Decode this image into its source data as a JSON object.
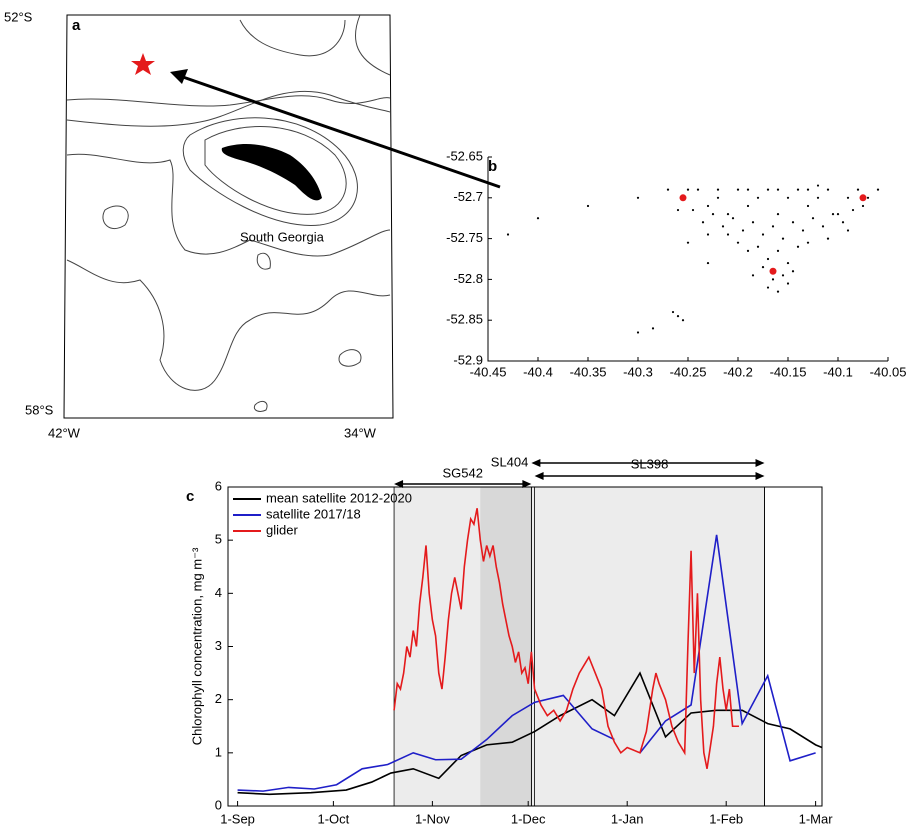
{
  "map": {
    "label": "a",
    "lat_top": "52°S",
    "lat_bottom": "58°S",
    "lon_left": "42°W",
    "lon_right": "34°W",
    "place": "South Georgia"
  },
  "chart_data": [
    {
      "type": "scatter",
      "panel": "b",
      "xlim": [
        -40.45,
        -40.05
      ],
      "ylim": [
        -52.9,
        -52.65
      ],
      "xticks": [
        -40.45,
        -40.4,
        -40.35,
        -40.3,
        -40.25,
        -40.2,
        -40.15,
        -40.1,
        -40.05
      ],
      "yticks": [
        -52.65,
        -52.7,
        -52.75,
        -52.8,
        -52.85,
        -52.9
      ],
      "series": [
        {
          "color": "#000000",
          "x": [
            -40.24,
            -40.23,
            -40.22,
            -40.21,
            -40.2,
            -40.19,
            -40.18,
            -40.17,
            -40.16,
            -40.15,
            -40.14,
            -40.13,
            -40.12,
            -40.11,
            -40.1,
            -40.09,
            -40.08,
            -40.075,
            -40.07,
            -40.245,
            -40.235,
            -40.225,
            -40.215,
            -40.205,
            -40.195,
            -40.185,
            -40.175,
            -40.165,
            -40.155,
            -40.145,
            -40.135,
            -40.125,
            -40.115,
            -40.105,
            -40.095,
            -40.085,
            -40.2,
            -40.19,
            -40.18,
            -40.17,
            -40.16,
            -40.15,
            -40.14,
            -40.13,
            -40.175,
            -40.165,
            -40.155,
            -40.17,
            -40.16,
            -40.15,
            -40.185,
            -40.145,
            -40.26,
            -40.27,
            -40.25,
            -40.12,
            -40.06,
            -40.09,
            -40.21,
            -40.23,
            -40.11,
            -40.22,
            -40.13,
            -40.16,
            -40.19,
            -40.43,
            -40.4,
            -40.35,
            -40.3,
            -40.3,
            -40.285,
            -40.265,
            -40.26,
            -40.255,
            -40.25,
            -40.23
          ],
          "values": [
            -52.69,
            -52.71,
            -52.7,
            -52.72,
            -52.69,
            -52.71,
            -52.7,
            -52.69,
            -52.72,
            -52.7,
            -52.69,
            -52.71,
            -52.7,
            -52.69,
            -52.72,
            -52.7,
            -52.69,
            -52.71,
            -52.7,
            -52.715,
            -52.73,
            -52.72,
            -52.735,
            -52.725,
            -52.74,
            -52.73,
            -52.745,
            -52.735,
            -52.75,
            -52.73,
            -52.74,
            -52.725,
            -52.735,
            -52.72,
            -52.73,
            -52.715,
            -52.755,
            -52.765,
            -52.76,
            -52.775,
            -52.765,
            -52.78,
            -52.76,
            -52.755,
            -52.785,
            -52.8,
            -52.795,
            -52.81,
            -52.815,
            -52.805,
            -52.795,
            -52.79,
            -52.715,
            -52.69,
            -52.69,
            -52.685,
            -52.69,
            -52.74,
            -52.745,
            -52.745,
            -52.75,
            -52.69,
            -52.69,
            -52.69,
            -52.69,
            -52.745,
            -52.725,
            -52.71,
            -52.7,
            -52.865,
            -52.86,
            -52.84,
            -52.845,
            -52.85,
            -52.755,
            -52.78
          ]
        },
        {
          "color": "#e41a1c",
          "x": [
            -40.255,
            -40.075,
            -40.165
          ],
          "values": [
            -52.7,
            -52.7,
            -52.79
          ]
        }
      ]
    },
    {
      "type": "line",
      "panel": "c",
      "ylabel": "Chlorophyll concentration, mg m⁻³",
      "xlim": [
        -3,
        183
      ],
      "ylim": [
        0,
        6
      ],
      "xticks": [
        {
          "value": 0,
          "label": "1-Sep"
        },
        {
          "value": 30,
          "label": "1-Oct"
        },
        {
          "value": 61,
          "label": "1-Nov"
        },
        {
          "value": 91,
          "label": "1-Dec"
        },
        {
          "value": 122,
          "label": "1-Jan"
        },
        {
          "value": 153,
          "label": "1-Feb"
        },
        {
          "value": 181,
          "label": "1-Mar"
        }
      ],
      "yticks": [
        0,
        1,
        2,
        3,
        4,
        5,
        6
      ],
      "legend": "upper left",
      "shaded": [
        {
          "start": 49,
          "end": 165,
          "color": "#ececec"
        },
        {
          "start": 76,
          "end": 92,
          "color": "#d8d8d8"
        }
      ],
      "deployments": [
        {
          "label": "SL404",
          "start": 92,
          "end": 165
        },
        {
          "label": "SL398",
          "start": 93,
          "end": 165
        },
        {
          "label": "SG542",
          "start": 49,
          "end": 92
        }
      ],
      "series": [
        {
          "name": "mean satellite 2012-2020",
          "color": "#000000",
          "x": [
            0,
            10,
            23,
            34,
            42,
            48,
            55,
            63,
            70,
            78,
            86,
            93,
            101,
            111,
            118,
            126,
            134,
            142,
            150,
            158,
            166,
            173,
            181,
            183
          ],
          "values": [
            0.25,
            0.22,
            0.25,
            0.3,
            0.45,
            0.62,
            0.7,
            0.52,
            0.95,
            1.15,
            1.2,
            1.4,
            1.7,
            2.0,
            1.7,
            2.5,
            1.3,
            1.75,
            1.8,
            1.8,
            1.55,
            1.45,
            1.15,
            1.1
          ]
        },
        {
          "name": "satellite 2017/18",
          "color": "#1f1fc8",
          "x": [
            0,
            8,
            16,
            24,
            31,
            39,
            47,
            55,
            62,
            70,
            78,
            86,
            93,
            102,
            111,
            118,
            122,
            126,
            134,
            142,
            150,
            158,
            166,
            173,
            181
          ],
          "values": [
            0.3,
            0.28,
            0.35,
            0.32,
            0.4,
            0.7,
            0.78,
            1.0,
            0.87,
            0.88,
            1.25,
            1.7,
            1.95,
            2.08,
            1.45,
            1.25,
            null,
            1.0,
            1.6,
            1.9,
            5.1,
            1.55,
            2.45,
            0.85,
            1.0
          ]
        },
        {
          "name": "glider",
          "color": "#e41a1c",
          "x": [
            49,
            50,
            51,
            52,
            53,
            54,
            55,
            56,
            57,
            58,
            59,
            60,
            61,
            62,
            63,
            64,
            65,
            66,
            67,
            68,
            69,
            70,
            71,
            72,
            73,
            74,
            75,
            76,
            77,
            78,
            79,
            80,
            81,
            82,
            83,
            84,
            85,
            86,
            87,
            88,
            89,
            90,
            91,
            92,
            93,
            95,
            97,
            99,
            101,
            103,
            105,
            107,
            109,
            110,
            112,
            114,
            116,
            118,
            120,
            122,
            124,
            126,
            128,
            130,
            131,
            132,
            134,
            136,
            138,
            140,
            141,
            142,
            143,
            144,
            145,
            146,
            147,
            149,
            150,
            151,
            152,
            153,
            154,
            155,
            157
          ],
          "values": [
            1.8,
            2.3,
            2.2,
            2.5,
            3.0,
            2.8,
            3.3,
            3.0,
            3.8,
            4.3,
            4.9,
            4.0,
            3.5,
            3.2,
            2.5,
            2.2,
            2.8,
            3.5,
            4.0,
            4.3,
            4.0,
            3.7,
            4.5,
            5.0,
            5.4,
            5.3,
            5.6,
            5.0,
            4.6,
            4.9,
            4.7,
            4.9,
            4.5,
            4.2,
            3.8,
            3.5,
            3.2,
            3.0,
            2.7,
            2.9,
            2.5,
            2.6,
            2.3,
            2.9,
            2.2,
            1.9,
            1.7,
            1.8,
            1.6,
            1.8,
            2.2,
            2.5,
            2.7,
            2.8,
            2.5,
            2.2,
            1.5,
            1.2,
            1.0,
            1.1,
            1.05,
            1.0,
            1.4,
            2.2,
            2.5,
            2.3,
            2.0,
            1.5,
            1.2,
            1.0,
            3.0,
            4.8,
            2.5,
            4.0,
            2.0,
            1.0,
            0.7,
            1.5,
            2.3,
            2.8,
            2.2,
            1.8,
            2.2,
            1.5,
            1.5
          ]
        }
      ]
    }
  ]
}
